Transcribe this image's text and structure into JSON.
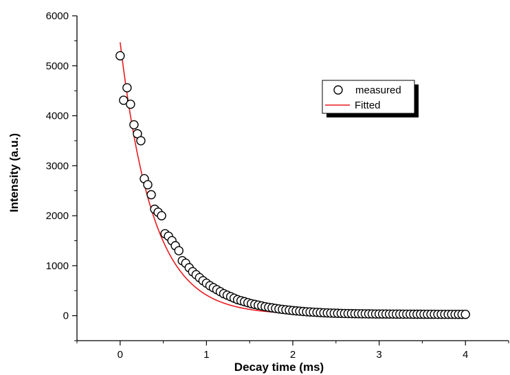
{
  "chart_data": {
    "type": "scatter",
    "xlabel": "Decay time (ms)",
    "ylabel": "Intensity (a.u.)",
    "xlim": [
      -0.5,
      4.5
    ],
    "ylim": [
      -500,
      6000
    ],
    "x_ticks": [
      0,
      1,
      2,
      3,
      4
    ],
    "y_ticks": [
      0,
      1000,
      2000,
      3000,
      4000,
      5000,
      6000
    ],
    "x_tick_labels": [
      "0",
      "1",
      "2",
      "3",
      "4"
    ],
    "y_tick_labels": [
      "0",
      "1000",
      "2000",
      "3000",
      "4000",
      "5000",
      "6000"
    ],
    "grid": false,
    "legend_position": "top-right",
    "series": [
      {
        "name": "measured",
        "kind": "scatter",
        "marker": "open-circle",
        "color": "#000000",
        "x": [
          0.0,
          0.04,
          0.08,
          0.12,
          0.16,
          0.2,
          0.24,
          0.28,
          0.32,
          0.36,
          0.4,
          0.44,
          0.48,
          0.52,
          0.56,
          0.6,
          0.64,
          0.68,
          0.72,
          0.76,
          0.8,
          0.84,
          0.88,
          0.92,
          0.96,
          1.0,
          1.04,
          1.08,
          1.12,
          1.16,
          1.2,
          1.24,
          1.28,
          1.32,
          1.36,
          1.4,
          1.44,
          1.48,
          1.52,
          1.56,
          1.6,
          1.64,
          1.68,
          1.72,
          1.76,
          1.8,
          1.84,
          1.88,
          1.92,
          1.96,
          2.0,
          2.04,
          2.08,
          2.12,
          2.16,
          2.2,
          2.24,
          2.28,
          2.32,
          2.36,
          2.4,
          2.44,
          2.48,
          2.52,
          2.56,
          2.6,
          2.64,
          2.68,
          2.72,
          2.76,
          2.8,
          2.84,
          2.88,
          2.92,
          2.96,
          3.0,
          3.04,
          3.08,
          3.12,
          3.16,
          3.2,
          3.24,
          3.28,
          3.32,
          3.36,
          3.4,
          3.44,
          3.48,
          3.52,
          3.56,
          3.6,
          3.64,
          3.68,
          3.72,
          3.76,
          3.8,
          3.84,
          3.88,
          3.92,
          3.96,
          4.0
        ],
        "y": [
          5200,
          4310,
          4560,
          4230,
          3820,
          3640,
          3500,
          2740,
          2620,
          2420,
          2130,
          2070,
          2000,
          1640,
          1590,
          1500,
          1400,
          1300,
          1100,
          1050,
          960,
          880,
          820,
          760,
          700,
          650,
          600,
          560,
          520,
          480,
          440,
          410,
          380,
          350,
          320,
          300,
          280,
          260,
          240,
          225,
          210,
          195,
          180,
          168,
          156,
          145,
          135,
          126,
          118,
          110,
          102,
          96,
          90,
          84,
          78,
          74,
          70,
          66,
          62,
          58,
          55,
          52,
          50,
          48,
          46,
          44,
          42,
          41,
          40,
          39,
          38,
          37,
          36,
          35,
          34,
          34,
          33,
          33,
          32,
          32,
          31,
          31,
          30,
          30,
          30,
          29,
          29,
          29,
          28,
          28,
          28,
          28,
          27,
          27,
          27,
          27,
          27,
          26,
          26,
          26,
          26
        ]
      },
      {
        "name": "Fitted",
        "kind": "line",
        "color": "#e8191d",
        "model": {
          "a": 5450,
          "tau": 0.38,
          "offset": 20
        },
        "x_range": [
          0,
          4
        ]
      }
    ]
  }
}
